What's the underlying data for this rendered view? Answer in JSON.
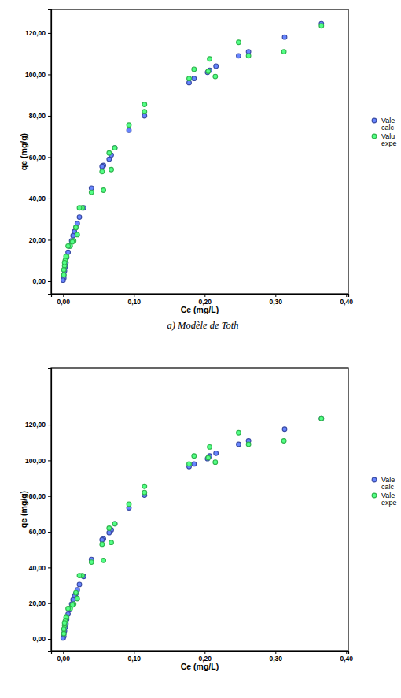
{
  "chart_data": [
    {
      "type": "scatter",
      "x_label": "Ce (mg/L)",
      "y_label": "qe (mg/g)",
      "annotation": "a) Modèle de Toth",
      "xlim": [
        -0.017,
        0.403
      ],
      "ylim": [
        -6.1,
        131.4
      ],
      "xticks": [
        {
          "value": 0,
          "label": "0,00"
        },
        {
          "value": 0.1,
          "label": "0,10"
        },
        {
          "value": 0.2,
          "label": "0,20"
        },
        {
          "value": 0.3,
          "label": "0,30"
        },
        {
          "value": 0.4,
          "label": "0,40"
        }
      ],
      "yticks": [
        {
          "value": 0,
          "label": "0,00"
        },
        {
          "value": 20,
          "label": "20,00"
        },
        {
          "value": 40,
          "label": "40,00"
        },
        {
          "value": 60,
          "label": "60,00"
        },
        {
          "value": 80,
          "label": "80,00"
        },
        {
          "value": 100,
          "label": "100,00"
        },
        {
          "value": 120,
          "label": "120,00"
        }
      ],
      "grid": false,
      "legend": "right",
      "series": [
        {
          "name": "Vale\ncalc",
          "color": "#3a4ba3",
          "marker": "circle",
          "x": [
            0.365,
            0.313,
            0.262,
            0.248,
            0.216,
            0.207,
            0.204,
            0.185,
            0.178,
            0.115,
            0.093,
            0.073,
            0.068,
            0.065,
            0.057,
            0.055,
            0.04,
            0.029,
            0.023,
            0.02,
            0.018,
            0.016,
            0.014,
            0.012,
            0.009,
            0.007,
            0.005,
            0.004,
            0.003,
            0.002,
            0.001,
            0.001,
            0.0
          ],
          "values": [
            124.5,
            118,
            111,
            109,
            104,
            102,
            101,
            98,
            96,
            80,
            73,
            64.5,
            61,
            59,
            56,
            55.5,
            45,
            35.5,
            31,
            28,
            26,
            24,
            22,
            19.5,
            17,
            14,
            11.5,
            9,
            7,
            5,
            3,
            1.5,
            0.5
          ]
        },
        {
          "name": "Valu\nexpe",
          "color": "#2fb34c",
          "marker": "circle",
          "x": [
            0.365,
            0.312,
            0.262,
            0.248,
            0.215,
            0.207,
            0.205,
            0.185,
            0.178,
            0.115,
            0.115,
            0.093,
            0.073,
            0.068,
            0.065,
            0.057,
            0.055,
            0.04,
            0.027,
            0.023,
            0.02,
            0.018,
            0.015,
            0.013,
            0.01,
            0.007,
            0.005,
            0.004,
            0.003,
            0.002,
            0.001,
            0.001,
            0.002
          ],
          "values": [
            123.5,
            111,
            109,
            115.5,
            99,
            107.5,
            101.5,
            102.5,
            98,
            85.5,
            82,
            75.5,
            64.5,
            54,
            62,
            44,
            53,
            43,
            35.5,
            35.5,
            22.5,
            26,
            19.5,
            19,
            17,
            17,
            12,
            12,
            10,
            7.5,
            5.5,
            3,
            9
          ]
        }
      ]
    },
    {
      "type": "scatter",
      "x_label": "Ce (mg/L)",
      "y_label": "qe (mg/g)",
      "xlim": [
        -0.017,
        0.403
      ],
      "ylim": [
        -6.6,
        151.8
      ],
      "xticks": [
        {
          "value": 0,
          "label": "0,00"
        },
        {
          "value": 0.1,
          "label": "0,10"
        },
        {
          "value": 0.2,
          "label": "0,20"
        },
        {
          "value": 0.3,
          "label": "0,30"
        },
        {
          "value": 0.4,
          "label": "0,40"
        }
      ],
      "yticks": [
        {
          "value": 0,
          "label": "0,00"
        },
        {
          "value": 20,
          "label": "20,00"
        },
        {
          "value": 40,
          "label": "40,00"
        },
        {
          "value": 60,
          "label": "60,00"
        },
        {
          "value": 80,
          "label": "80,00"
        },
        {
          "value": 100,
          "label": "100,00"
        },
        {
          "value": 120,
          "label": "120,00"
        }
      ],
      "grid": false,
      "legend": "right",
      "series": [
        {
          "name": "Vale\ncalc",
          "color": "#3a4ba3",
          "marker": "circle",
          "x": [
            0.365,
            0.313,
            0.262,
            0.248,
            0.216,
            0.207,
            0.204,
            0.185,
            0.178,
            0.115,
            0.093,
            0.073,
            0.068,
            0.065,
            0.057,
            0.055,
            0.04,
            0.029,
            0.023,
            0.02,
            0.018,
            0.016,
            0.014,
            0.012,
            0.009,
            0.007,
            0.005,
            0.004,
            0.003,
            0.002,
            0.001,
            0.001,
            0.0
          ],
          "values": [
            123.5,
            117.5,
            111,
            109,
            104,
            102.5,
            101,
            98,
            96.5,
            80.5,
            73.5,
            64.5,
            61,
            59.5,
            56,
            55.5,
            44.5,
            35,
            30.5,
            27.5,
            25.5,
            24,
            22,
            19.5,
            16.5,
            14,
            11,
            8.5,
            6.5,
            4.5,
            3,
            1.5,
            0.5
          ]
        },
        {
          "name": "Vale\nexpe",
          "color": "#2fb34c",
          "marker": "circle",
          "x": [
            0.365,
            0.312,
            0.262,
            0.248,
            0.215,
            0.207,
            0.205,
            0.185,
            0.178,
            0.115,
            0.115,
            0.093,
            0.073,
            0.068,
            0.065,
            0.057,
            0.055,
            0.04,
            0.027,
            0.023,
            0.02,
            0.018,
            0.015,
            0.013,
            0.01,
            0.007,
            0.005,
            0.004,
            0.003,
            0.002,
            0.001,
            0.001,
            0.002
          ],
          "values": [
            123.5,
            111,
            109,
            115.5,
            99,
            107.5,
            101.5,
            102.5,
            98,
            85.5,
            82,
            75.5,
            64.5,
            54,
            62,
            44,
            53,
            43,
            35.5,
            35.5,
            22.5,
            26,
            19.5,
            19,
            17,
            17,
            12,
            12,
            10,
            7.5,
            5.5,
            3,
            9
          ]
        }
      ]
    }
  ]
}
